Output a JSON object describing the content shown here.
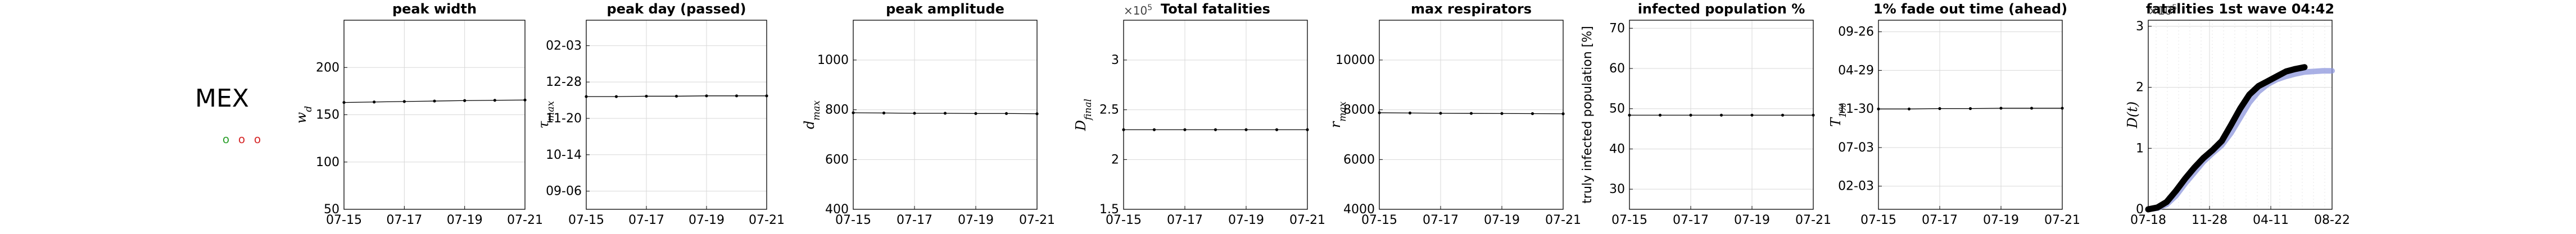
{
  "country": {
    "code": "MEX",
    "markers": [
      {
        "symbol": "o",
        "color": "#2ca02c"
      },
      {
        "symbol": "o",
        "color": "#d62728"
      },
      {
        "symbol": "o",
        "color": "#d62728"
      }
    ]
  },
  "chart_data": [
    {
      "type": "line",
      "title": "peak width",
      "ylabel": "w_d",
      "ylabel_style": "math",
      "x_ticks": [
        "07-15",
        "07-17",
        "07-19",
        "07-21"
      ],
      "y_ticks": [
        "50",
        "100",
        "150",
        "200"
      ],
      "xlim": [
        0,
        6
      ],
      "ylim": [
        50,
        250
      ],
      "x": [
        0,
        1,
        2,
        3,
        4,
        5,
        6
      ],
      "series": [
        {
          "values": [
            163,
            163.5,
            164,
            164.5,
            165,
            165.3,
            165.6
          ]
        }
      ],
      "grid": true
    },
    {
      "type": "line",
      "title": "peak day (passed)",
      "ylabel": "τ_max",
      "ylabel_style": "math",
      "x_ticks": [
        "07-15",
        "07-17",
        "07-19",
        "07-21"
      ],
      "y_ticks": [
        "09-06",
        "10-14",
        "11-20",
        "12-28",
        "02-03"
      ],
      "xlim": [
        0,
        6
      ],
      "ylim": [
        -0.5,
        4.7
      ],
      "x": [
        0,
        1,
        2,
        3,
        4,
        5,
        6
      ],
      "series": [
        {
          "values": [
            2.6,
            2.6,
            2.61,
            2.61,
            2.62,
            2.62,
            2.62
          ]
        }
      ],
      "grid": true
    },
    {
      "type": "line",
      "title": "peak amplitude",
      "ylabel": "d_max",
      "ylabel_style": "math",
      "x_ticks": [
        "07-15",
        "07-17",
        "07-19",
        "07-21"
      ],
      "y_ticks": [
        "400",
        "600",
        "800",
        "1000"
      ],
      "xlim": [
        0,
        6
      ],
      "ylim": [
        400,
        1160
      ],
      "x": [
        0,
        1,
        2,
        3,
        4,
        5,
        6
      ],
      "series": [
        {
          "values": [
            788,
            787,
            786,
            786,
            785,
            785,
            784
          ]
        }
      ],
      "grid": true
    },
    {
      "type": "line",
      "title": "Total fatalities",
      "ylabel": "D_final",
      "ylabel_style": "math",
      "multiplier": "×10^5",
      "x_ticks": [
        "07-15",
        "07-17",
        "07-19",
        "07-21"
      ],
      "y_ticks": [
        "1.5",
        "2",
        "2.5",
        "3"
      ],
      "xlim": [
        0,
        6
      ],
      "ylim": [
        1.5,
        3.4
      ],
      "x": [
        0,
        1,
        2,
        3,
        4,
        5,
        6
      ],
      "series": [
        {
          "values": [
            2.3,
            2.3,
            2.3,
            2.3,
            2.3,
            2.3,
            2.3
          ]
        }
      ],
      "grid": true
    },
    {
      "type": "line",
      "title": "max respirators",
      "ylabel": "r_max",
      "ylabel_style": "math",
      "x_ticks": [
        "07-15",
        "07-17",
        "07-19",
        "07-21"
      ],
      "y_ticks": [
        "4000",
        "6000",
        "8000",
        "10000"
      ],
      "xlim": [
        0,
        6
      ],
      "ylim": [
        4000,
        11600
      ],
      "x": [
        0,
        1,
        2,
        3,
        4,
        5,
        6
      ],
      "series": [
        {
          "values": [
            7880,
            7870,
            7860,
            7855,
            7850,
            7845,
            7840
          ]
        }
      ],
      "grid": true
    },
    {
      "type": "line",
      "title": "infected population %",
      "ylabel": "truly infected population [%]",
      "ylabel_style": "plain",
      "x_ticks": [
        "07-15",
        "07-17",
        "07-19",
        "07-21"
      ],
      "y_ticks": [
        "30",
        "40",
        "50",
        "60",
        "70"
      ],
      "xlim": [
        0,
        6
      ],
      "ylim": [
        25,
        72
      ],
      "x": [
        0,
        1,
        2,
        3,
        4,
        5,
        6
      ],
      "series": [
        {
          "values": [
            48.4,
            48.4,
            48.4,
            48.4,
            48.4,
            48.4,
            48.4
          ]
        }
      ],
      "grid": true
    },
    {
      "type": "line",
      "title": "1% fade out time (ahead)",
      "ylabel": "T_1%",
      "ylabel_style": "math",
      "x_ticks": [
        "07-15",
        "07-17",
        "07-19",
        "07-21"
      ],
      "y_ticks": [
        "02-03",
        "07-03",
        "11-30",
        "04-29",
        "09-26"
      ],
      "xlim": [
        0,
        6
      ],
      "ylim": [
        -0.6,
        4.3
      ],
      "x": [
        0,
        1,
        2,
        3,
        4,
        5,
        6
      ],
      "series": [
        {
          "values": [
            2.0,
            2.0,
            2.01,
            2.01,
            2.02,
            2.02,
            2.02
          ]
        }
      ],
      "grid": true
    },
    {
      "type": "line",
      "title": "fatalities 1st wave 04:42",
      "ylabel": "D(t)",
      "ylabel_style": "math",
      "multiplier": "×10^5",
      "x_ticks": [
        "07-18",
        "11-28",
        "04-11",
        "08-22"
      ],
      "y_ticks": [
        "0",
        "1",
        "2",
        "3"
      ],
      "xlim": [
        0,
        100
      ],
      "ylim": [
        0,
        3.1
      ],
      "x": [
        0,
        5,
        10,
        15,
        20,
        25,
        30,
        35,
        40,
        45,
        50,
        55,
        60,
        65,
        70,
        75,
        80,
        85,
        90,
        95,
        100
      ],
      "series": [
        {
          "color": "#8c96dc",
          "values": [
            0.0,
            0.02,
            0.08,
            0.22,
            0.42,
            0.6,
            0.78,
            0.92,
            1.05,
            1.25,
            1.5,
            1.75,
            1.93,
            2.05,
            2.13,
            2.18,
            2.22,
            2.25,
            2.26,
            2.27,
            2.27
          ]
        },
        {
          "color": "#000000",
          "values": [
            0.0,
            0.03,
            0.12,
            0.3,
            0.5,
            0.68,
            0.84,
            0.97,
            1.12,
            1.38,
            1.65,
            1.88,
            2.02,
            2.1,
            2.18,
            2.26,
            2.3,
            2.33,
            null,
            null,
            null
          ]
        }
      ],
      "grid": true
    }
  ]
}
